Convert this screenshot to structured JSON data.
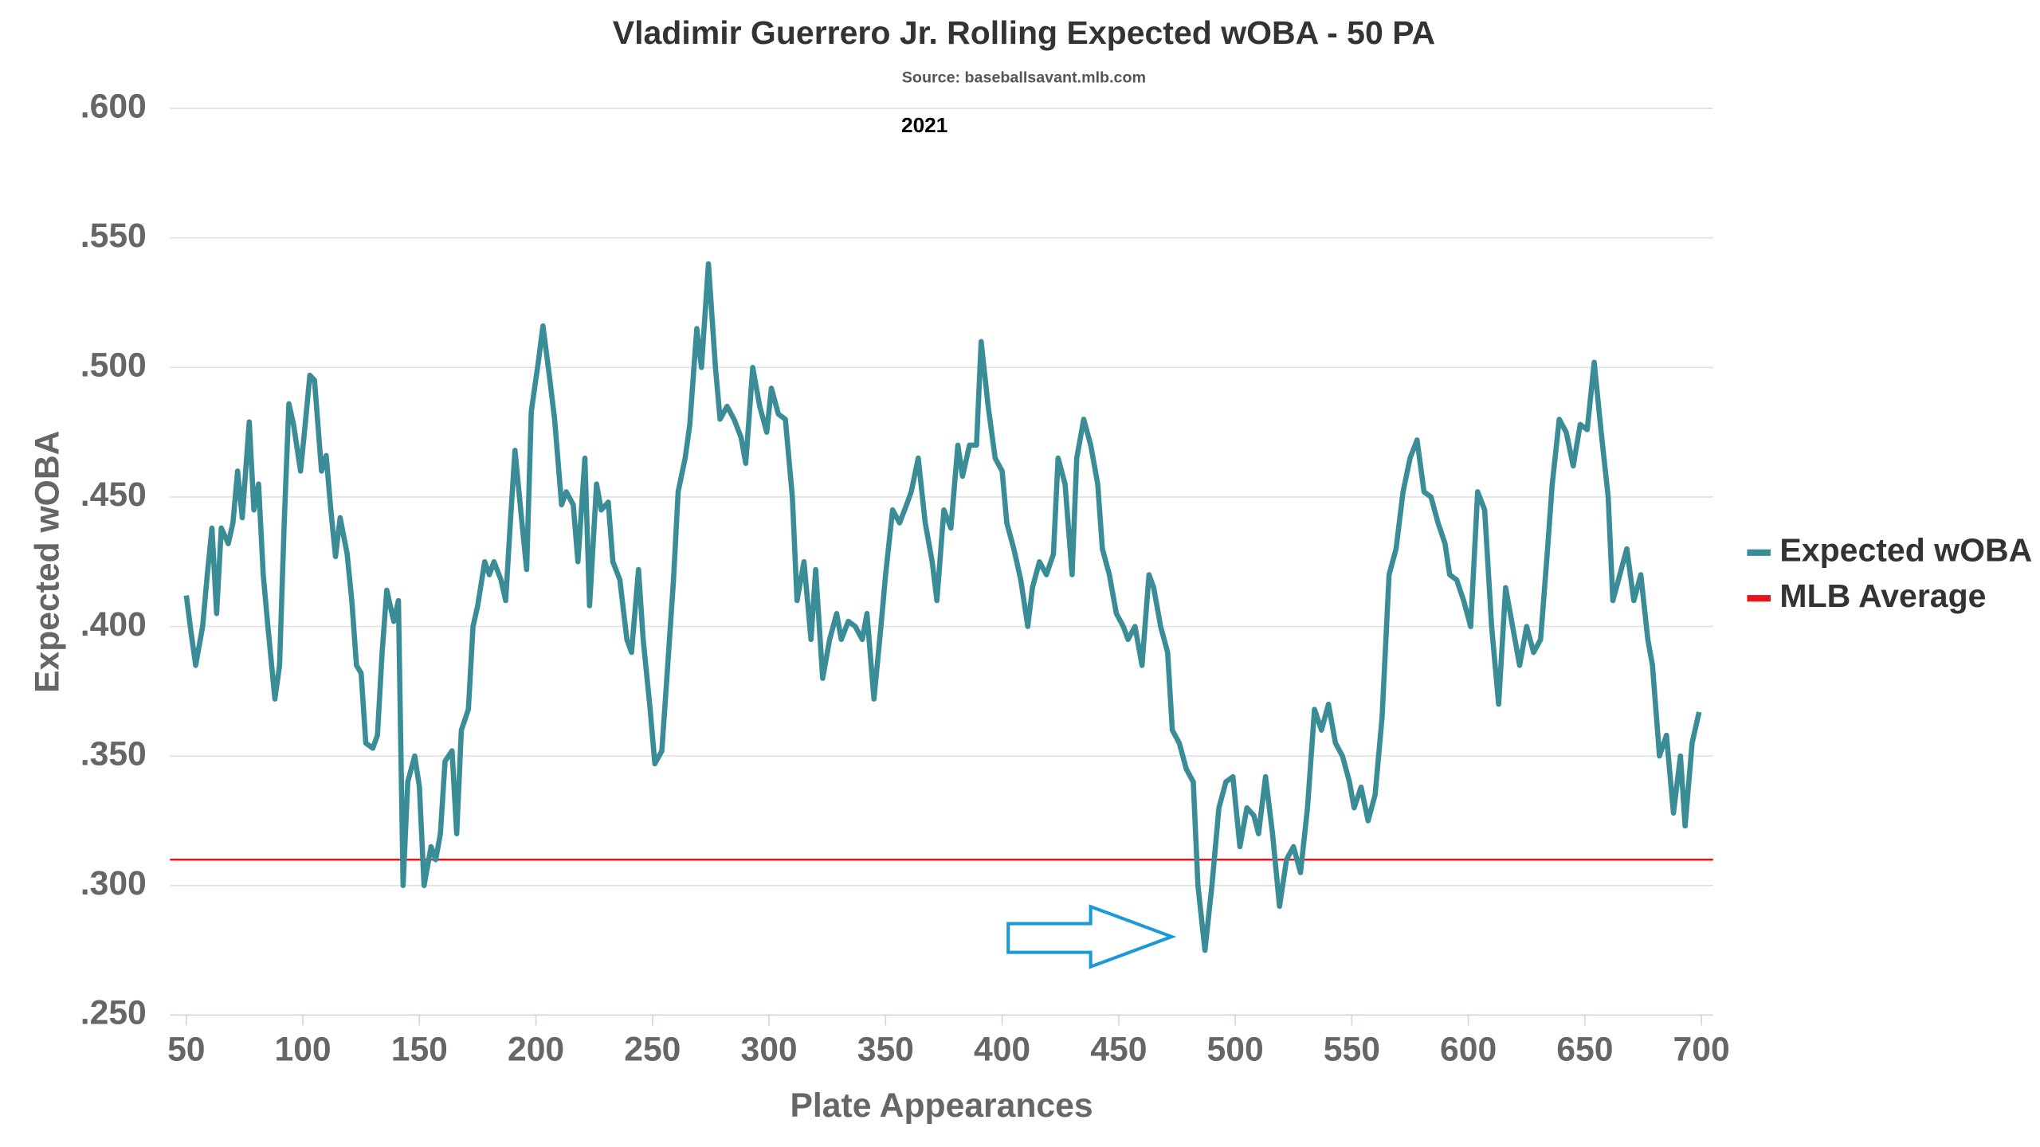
{
  "chart_data": {
    "type": "line",
    "title": "Vladimir Guerrero Jr. Rolling Expected wOBA - 50 PA",
    "subtitle": "Source: baseballsavant.mlb.com",
    "annotation": "2021",
    "xlabel": "Plate Appearances",
    "ylabel": "Expected wOBA",
    "xlim": [
      43,
      705
    ],
    "ylim": [
      0.25,
      0.6
    ],
    "xticks": [
      50,
      100,
      150,
      200,
      250,
      300,
      350,
      400,
      450,
      500,
      550,
      600,
      650,
      700
    ],
    "yticks": [
      {
        "value": 0.25,
        "label": ".250"
      },
      {
        "value": 0.3,
        "label": ".300"
      },
      {
        "value": 0.35,
        "label": ".350"
      },
      {
        "value": 0.4,
        "label": ".400"
      },
      {
        "value": 0.45,
        "label": ".450"
      },
      {
        "value": 0.5,
        "label": ".500"
      },
      {
        "value": 0.55,
        "label": ".550"
      },
      {
        "value": 0.6,
        "label": ".600"
      }
    ],
    "grid": true,
    "legend": "right",
    "x": [
      50,
      52,
      54,
      57,
      59,
      61,
      63,
      65,
      68,
      70,
      72,
      74,
      77,
      79,
      81,
      83,
      85,
      88,
      90,
      92,
      94,
      96,
      99,
      101,
      103,
      105,
      108,
      110,
      112,
      114,
      116,
      119,
      121,
      123,
      125,
      127,
      130,
      132,
      134,
      136,
      139,
      141,
      143,
      145,
      148,
      150,
      152,
      155,
      157,
      159,
      161,
      164,
      166,
      168,
      171,
      173,
      175,
      178,
      180,
      182,
      185,
      187,
      189,
      191,
      194,
      196,
      198,
      201,
      203,
      206,
      208,
      211,
      213,
      216,
      218,
      221,
      223,
      226,
      228,
      231,
      233,
      236,
      239,
      241,
      244,
      246,
      249,
      251,
      254,
      256,
      259,
      261,
      264,
      266,
      269,
      271,
      274,
      277,
      279,
      282,
      285,
      288,
      290,
      293,
      296,
      299,
      301,
      304,
      307,
      310,
      312,
      315,
      318,
      320,
      323,
      326,
      329,
      331,
      334,
      337,
      340,
      342,
      345,
      348,
      350,
      353,
      356,
      359,
      361,
      364,
      367,
      370,
      372,
      375,
      378,
      381,
      383,
      386,
      389,
      391,
      394,
      397,
      400,
      402,
      405,
      408,
      411,
      413,
      416,
      419,
      422,
      424,
      427,
      430,
      432,
      435,
      438,
      441,
      443,
      446,
      449,
      452,
      454,
      457,
      460,
      463,
      465,
      468,
      471,
      473,
      476,
      479,
      482,
      484,
      487,
      490,
      493,
      496,
      499,
      502,
      505,
      508,
      510,
      513,
      516,
      519,
      522,
      525,
      528,
      531,
      534,
      537,
      540,
      543,
      546,
      549,
      551,
      554,
      557,
      560,
      563,
      566,
      569,
      572,
      575,
      578,
      581,
      584,
      587,
      590,
      592,
      595,
      598,
      601,
      604,
      607,
      610,
      613,
      616,
      619,
      622,
      625,
      628,
      631,
      634,
      636,
      639,
      642,
      645,
      648,
      651,
      654,
      657,
      660,
      662,
      665,
      668,
      671,
      674,
      677,
      679,
      682,
      685,
      688,
      691,
      693,
      696,
      699
    ],
    "series": [
      {
        "name": "Expected wOBA",
        "color": "#3a8d96",
        "values": [
          0.412,
          0.398,
          0.385,
          0.4,
          0.42,
          0.438,
          0.405,
          0.438,
          0.432,
          0.44,
          0.46,
          0.442,
          0.479,
          0.445,
          0.455,
          0.42,
          0.4,
          0.372,
          0.385,
          0.44,
          0.486,
          0.478,
          0.46,
          0.478,
          0.497,
          0.495,
          0.46,
          0.466,
          0.445,
          0.427,
          0.442,
          0.428,
          0.41,
          0.385,
          0.382,
          0.355,
          0.353,
          0.358,
          0.39,
          0.414,
          0.402,
          0.41,
          0.3,
          0.34,
          0.35,
          0.338,
          0.3,
          0.315,
          0.31,
          0.32,
          0.348,
          0.352,
          0.32,
          0.36,
          0.368,
          0.4,
          0.408,
          0.425,
          0.42,
          0.425,
          0.418,
          0.41,
          0.44,
          0.468,
          0.44,
          0.422,
          0.483,
          0.502,
          0.516,
          0.495,
          0.48,
          0.447,
          0.452,
          0.447,
          0.425,
          0.465,
          0.408,
          0.455,
          0.445,
          0.448,
          0.425,
          0.418,
          0.395,
          0.39,
          0.422,
          0.395,
          0.368,
          0.347,
          0.352,
          0.378,
          0.418,
          0.452,
          0.465,
          0.478,
          0.515,
          0.5,
          0.54,
          0.5,
          0.48,
          0.485,
          0.48,
          0.473,
          0.463,
          0.5,
          0.485,
          0.475,
          0.492,
          0.482,
          0.48,
          0.45,
          0.41,
          0.425,
          0.395,
          0.422,
          0.38,
          0.395,
          0.405,
          0.395,
          0.402,
          0.4,
          0.395,
          0.405,
          0.372,
          0.4,
          0.42,
          0.445,
          0.44,
          0.447,
          0.452,
          0.465,
          0.44,
          0.425,
          0.41,
          0.445,
          0.438,
          0.47,
          0.458,
          0.47,
          0.47,
          0.51,
          0.485,
          0.465,
          0.46,
          0.44,
          0.43,
          0.418,
          0.4,
          0.415,
          0.425,
          0.42,
          0.428,
          0.465,
          0.455,
          0.42,
          0.465,
          0.48,
          0.47,
          0.455,
          0.43,
          0.42,
          0.405,
          0.4,
          0.395,
          0.4,
          0.385,
          0.42,
          0.415,
          0.4,
          0.39,
          0.36,
          0.355,
          0.345,
          0.34,
          0.3,
          0.275,
          0.3,
          0.33,
          0.34,
          0.342,
          0.315,
          0.33,
          0.327,
          0.32,
          0.342,
          0.32,
          0.292,
          0.31,
          0.315,
          0.305,
          0.33,
          0.368,
          0.36,
          0.37,
          0.355,
          0.35,
          0.34,
          0.33,
          0.338,
          0.325,
          0.335,
          0.365,
          0.42,
          0.43,
          0.452,
          0.465,
          0.472,
          0.452,
          0.45,
          0.44,
          0.432,
          0.42,
          0.418,
          0.41,
          0.4,
          0.452,
          0.445,
          0.4,
          0.37,
          0.415,
          0.4,
          0.385,
          0.4,
          0.39,
          0.395,
          0.43,
          0.455,
          0.48,
          0.475,
          0.462,
          0.478,
          0.476,
          0.502,
          0.475,
          0.45,
          0.41,
          0.42,
          0.43,
          0.41,
          0.42,
          0.395,
          0.385,
          0.35,
          0.358,
          0.328,
          0.35,
          0.323,
          0.355,
          0.367
        ]
      }
    ],
    "reference_lines": [
      {
        "name": "MLB Average",
        "color": "#e8141b",
        "value": 0.31
      }
    ]
  }
}
